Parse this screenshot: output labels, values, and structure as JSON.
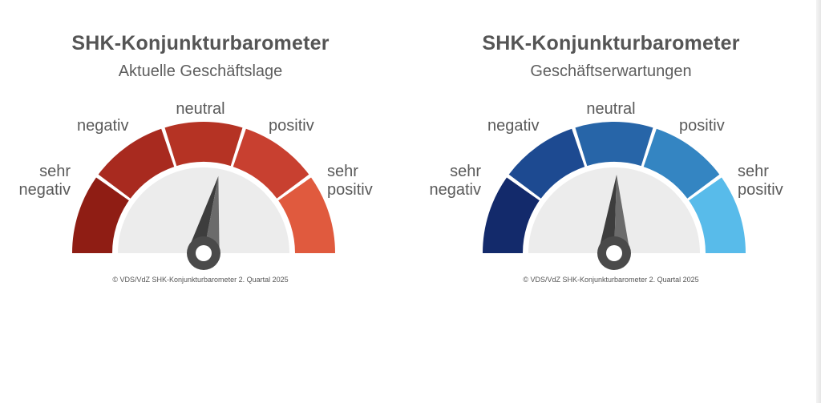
{
  "chart_data": [
    {
      "type": "gauge",
      "title": "SHK-Konjunkturbarometer",
      "subtitle": "Aktuelle Geschäftslage",
      "categories": [
        "sehr negativ",
        "negativ",
        "neutral",
        "positiv",
        "sehr positiv"
      ],
      "labels": {
        "very_negative": [
          "sehr",
          "negativ"
        ],
        "negative": "negativ",
        "neutral": "neutral",
        "positive": "positiv",
        "very_positive": [
          "sehr",
          "positiv"
        ]
      },
      "needle_value": 0.56,
      "scale": [
        0,
        1
      ],
      "colors": [
        "#8f1d14",
        "#a82a1f",
        "#b53324",
        "#c84030",
        "#e05a3e"
      ],
      "copyright": "© VDS/VdZ SHK-Konjunkturbarometer 2. Quartal 2025"
    },
    {
      "type": "gauge",
      "title": "SHK-Konjunkturbarometer",
      "subtitle": "Geschäftserwartungen",
      "categories": [
        "sehr negativ",
        "negativ",
        "neutral",
        "positiv",
        "sehr positiv"
      ],
      "labels": {
        "very_negative": [
          "sehr",
          "negativ"
        ],
        "negative": "negativ",
        "neutral": "neutral",
        "positive": "positiv",
        "very_positive": [
          "sehr",
          "positiv"
        ]
      },
      "needle_value": 0.51,
      "scale": [
        0,
        1
      ],
      "colors": [
        "#132a6b",
        "#1d4a91",
        "#2765a8",
        "#3485c2",
        "#58bbea"
      ],
      "copyright": "© VDS/VdZ SHK-Konjunkturbarometer 2. Quartal 2025"
    }
  ]
}
